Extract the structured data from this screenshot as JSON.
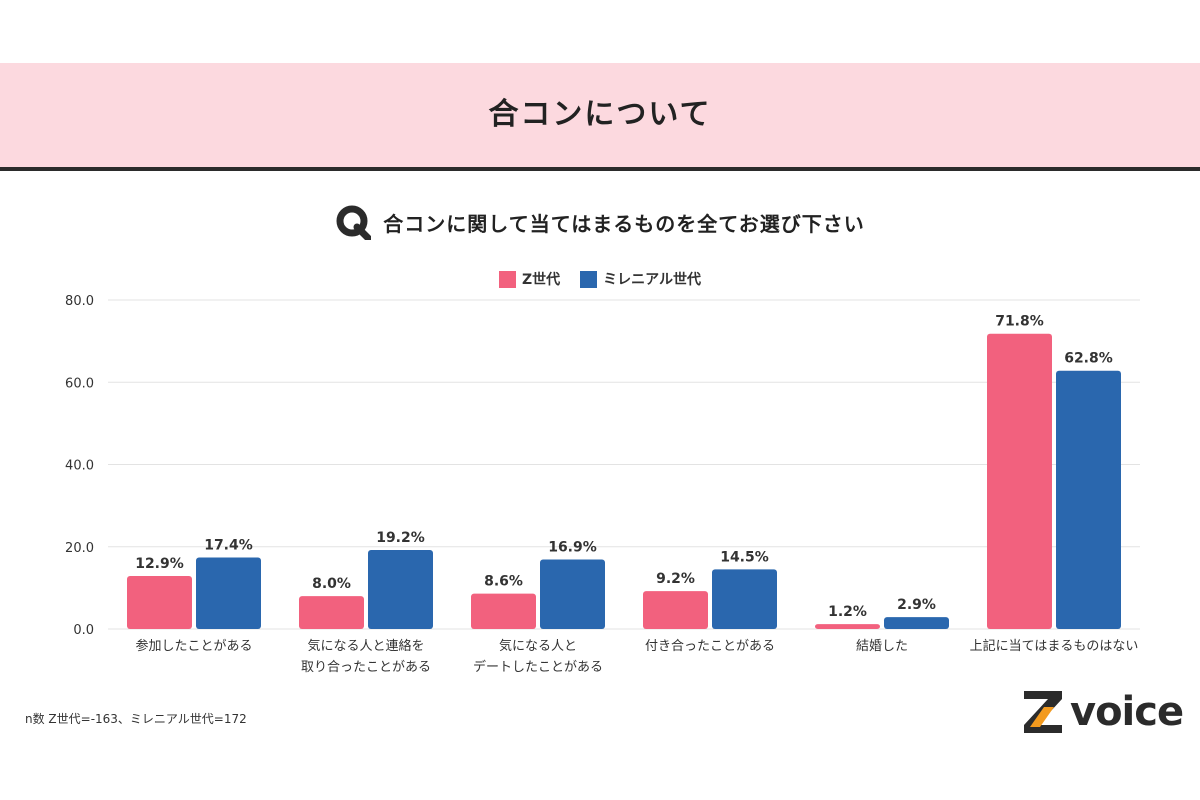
{
  "header": {
    "title": "合コンについて"
  },
  "question": {
    "icon": "q-icon",
    "text": "合コンに関して当てはまるものを全てお選び下さい"
  },
  "colors": {
    "z": "#f2617e",
    "millennial": "#2a67ae",
    "header_bg": "#fcd9df",
    "grid": "#e3e3e3"
  },
  "footnote": "n数 Z世代=-163、ミレニアル世代=172",
  "logo": {
    "text": "voice",
    "mark": "Z-logo-icon"
  },
  "chart_data": {
    "type": "bar",
    "title": "",
    "xlabel": "",
    "ylabel": "",
    "ylim": [
      0,
      80
    ],
    "yticks": [
      "0.0",
      "20.0",
      "40.0",
      "60.0",
      "80.0"
    ],
    "grid": true,
    "legend_position": "top-center",
    "categories": [
      [
        "参加したことがある"
      ],
      [
        "気になる人と連絡を",
        "取り合ったことがある"
      ],
      [
        "気になる人と",
        "デートしたことがある"
      ],
      [
        "付き合ったことがある"
      ],
      [
        "結婚した"
      ],
      [
        "上記に当てはまるものはない"
      ]
    ],
    "series": [
      {
        "name": "Z世代",
        "color": "#f2617e",
        "values": [
          12.9,
          8.0,
          8.6,
          9.2,
          1.2,
          71.8
        ],
        "labels": [
          "12.9%",
          "8.0%",
          "8.6%",
          "9.2%",
          "1.2%",
          "71.8%"
        ]
      },
      {
        "name": "ミレニアル世代",
        "color": "#2a67ae",
        "values": [
          17.4,
          19.2,
          16.9,
          14.5,
          2.9,
          62.8
        ],
        "labels": [
          "17.4%",
          "19.2%",
          "16.9%",
          "14.5%",
          "2.9%",
          "62.8%"
        ]
      }
    ]
  }
}
